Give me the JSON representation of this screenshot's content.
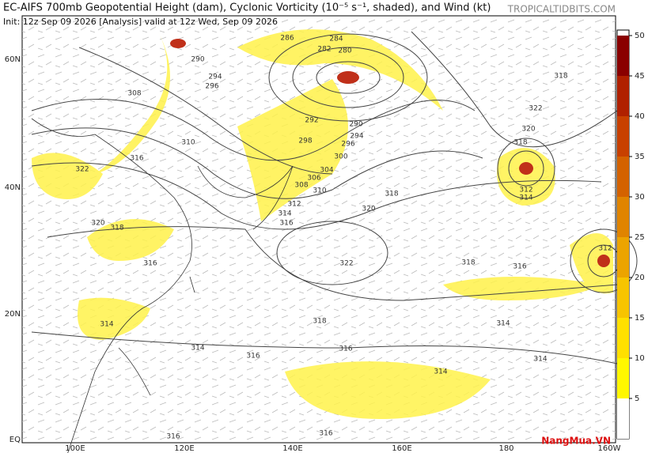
{
  "header": {
    "title": "EC-AIFS 700mb Geopotential Height (dam), Cyclonic Vorticity (10⁻⁵ s⁻¹, shaded), and Wind (kt)",
    "subtitle": "Init: 12z Sep 09 2026   [Analysis]   valid at 12z Wed, Sep 09 2026",
    "brand": "TROPICALTIDBITS.COM"
  },
  "map": {
    "lat_labels": [
      "60N",
      "40N",
      "20N",
      "EQ"
    ],
    "lon_labels": [
      "100E",
      "120E",
      "140E",
      "160E",
      "180",
      "160W"
    ],
    "contour_labels": [
      "286",
      "284",
      "282",
      "280",
      "290",
      "294",
      "296",
      "308",
      "292",
      "298",
      "290",
      "294",
      "296",
      "300",
      "304",
      "306",
      "308",
      "310",
      "312",
      "314",
      "316",
      "318",
      "320",
      "322",
      "318",
      "316",
      "318",
      "316",
      "314",
      "314",
      "314",
      "316",
      "314",
      "314",
      "316",
      "318",
      "320",
      "322",
      "310",
      "316",
      "318",
      "322",
      "320",
      "318",
      "312",
      "314",
      "312",
      "316",
      "316"
    ]
  },
  "colorbar": {
    "range": [
      0,
      50
    ],
    "ticks": [
      5,
      10,
      15,
      20,
      25,
      30,
      35,
      40,
      45,
      50
    ],
    "colors": [
      "#ffffff",
      "#fff700",
      "#ffe000",
      "#f7c400",
      "#eca400",
      "#e08400",
      "#d46200",
      "#c84000",
      "#b02000",
      "#8a0000"
    ]
  },
  "watermark": "NangMua.VN"
}
